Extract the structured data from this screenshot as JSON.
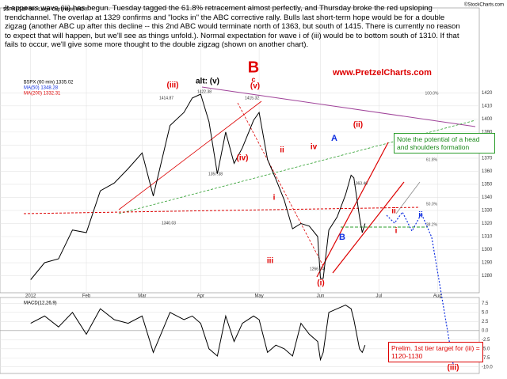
{
  "commentary": "It appears wave (iii) has begun.  Tuesday tagged the 61.8% retracement almost perfectly, and Thursday broke the red upsloping trendchannel.  The overlap at 1329 confirms and \"locks in\" the ABC corrective rally.  Bulls last short-term hope would be for a double zigzag (another ABC up after this decline -- this 2nd ABC would terminate north of 1363, but south of 1415.  There is currently no reason to expect that will happen, but we'll see as things unfold.).  Normal expectation for wave i of (iii) would be to bottom south of 1310.  If that fails to occur, we'll give some more thought to the double zigzag (shown on another chart).",
  "header": {
    "symbol": "$SPX (S&P 500 Large Cap Index) INDX",
    "source": "©StockCharts.com",
    "website": "www.PretzelCharts.com",
    "legend": [
      "$SPX (60 min) 1335.02",
      "MA(50) 1348.28",
      "MA(200) 1332.31"
    ]
  },
  "callouts": {
    "head_shoulders": "Note the potential of a head and shoulders formation",
    "target": "Prelim. 1st tier target for (iii) = 1120-1130"
  },
  "chart_data": [
    {
      "type": "line",
      "name": "$SPX (60 min)",
      "color": "#000000",
      "x": [
        0,
        5,
        10,
        15,
        20,
        25,
        30,
        35,
        40,
        44,
        50,
        55,
        58,
        61,
        64,
        67,
        70,
        73,
        76,
        80,
        82,
        85,
        88,
        91,
        94,
        97,
        100,
        103,
        104,
        105,
        107,
        110,
        113,
        115,
        116,
        118,
        119,
        120
      ],
      "values": [
        1277,
        1290,
        1293,
        1315,
        1313,
        1345,
        1351,
        1362,
        1374,
        1341,
        1395,
        1405,
        1416,
        1419,
        1398,
        1358,
        1390,
        1366,
        1378,
        1399,
        1405,
        1369,
        1354,
        1338,
        1316,
        1320,
        1318,
        1310,
        1278,
        1278,
        1315,
        1325,
        1342,
        1357,
        1355,
        1325,
        1313,
        1320
      ],
      "xlim": [
        -11,
        161
      ],
      "xticks": [
        {
          "value": 0,
          "label": "2012"
        },
        {
          "value": 20,
          "label": "Feb"
        },
        {
          "value": 40,
          "label": "Mar"
        },
        {
          "value": 61,
          "label": "Apr"
        },
        {
          "value": 82,
          "label": "May"
        },
        {
          "value": 104,
          "label": "Jun"
        },
        {
          "value": 125,
          "label": "Jul"
        },
        {
          "value": 146,
          "label": "Aug"
        }
      ],
      "ylim": [
        1267,
        1485
      ],
      "yticks": [
        1280,
        1290,
        1300,
        1310,
        1320,
        1330,
        1340,
        1350,
        1360,
        1370,
        1380,
        1390,
        1400,
        1410,
        1420
      ],
      "grid": true,
      "annotations": [
        {
          "text": "B",
          "color": "#e00000"
        },
        {
          "text": "c",
          "color": "#e00000"
        },
        {
          "text": "(v)",
          "color": "#e00000"
        },
        {
          "text": "alt: (v)",
          "color": "#000000"
        },
        {
          "text": "(iii)",
          "color": "#e00000"
        },
        {
          "text": "(iv)",
          "color": "#e00000"
        },
        {
          "text": "ii",
          "color": "#e00000"
        },
        {
          "text": "i",
          "color": "#e00000"
        },
        {
          "text": "iv",
          "color": "#e00000"
        },
        {
          "text": "iii",
          "color": "#e00000"
        },
        {
          "text": "(i)",
          "color": "#e00000"
        },
        {
          "text": "A",
          "color": "#1030e0"
        },
        {
          "text": "B",
          "color": "#1030e0"
        },
        {
          "text": "(ii)",
          "color": "#e00000"
        },
        {
          "text": "ii",
          "color": "#e00000"
        },
        {
          "text": "i",
          "color": "#e00000"
        },
        {
          "text": "ii",
          "color": "#1030e0"
        },
        {
          "text": "(iii)",
          "color": "#e00000"
        },
        {
          "text": "1414.87",
          "color": "#333333"
        },
        {
          "text": "1422.38",
          "color": "#333333"
        },
        {
          "text": "1415.32",
          "color": "#333333"
        },
        {
          "text": "1340.03",
          "color": "#333333"
        },
        {
          "text": "1357.38",
          "color": "#333333"
        },
        {
          "text": "1266.74",
          "color": "#333333"
        },
        {
          "text": "1363.46",
          "color": "#333333"
        },
        {
          "text": "61.8%",
          "color": "#555555"
        },
        {
          "text": "50.0%",
          "color": "#555555"
        },
        {
          "text": "38.2%",
          "color": "#555555"
        },
        {
          "text": "100.0%",
          "color": "#555555"
        }
      ]
    },
    {
      "type": "line",
      "name": "MACD(12,26,9)",
      "color": "#000000",
      "x": [
        0,
        5,
        10,
        15,
        20,
        25,
        30,
        35,
        40,
        44,
        50,
        55,
        58,
        61,
        64,
        67,
        70,
        73,
        76,
        80,
        82,
        85,
        88,
        91,
        94,
        97,
        100,
        103,
        104,
        105,
        107,
        110,
        113,
        115,
        116,
        118,
        119,
        120
      ],
      "values": [
        2,
        4,
        1,
        5,
        -1,
        6,
        3,
        2,
        4,
        -6,
        5,
        3,
        4,
        2,
        -5,
        -7,
        4,
        -3,
        2,
        4,
        3,
        -6,
        -4,
        -5,
        -7,
        2,
        -1,
        -3,
        -8,
        -6,
        5,
        6,
        7,
        6,
        3,
        -5,
        -6,
        -4
      ],
      "xlim": [
        -11,
        161
      ],
      "ylim": [
        -11.8,
        9.1
      ],
      "yticks": [
        {
          "value": 7.5,
          "label": "7.5"
        },
        {
          "value": 5,
          "label": "5.0"
        },
        {
          "value": 2.5,
          "label": "2.5"
        },
        {
          "value": 0,
          "label": "0.0"
        },
        {
          "value": -2.5,
          "label": "-2.5"
        },
        {
          "value": -5,
          "label": "-5.0"
        },
        {
          "value": -7.5,
          "label": "-7.5"
        },
        {
          "value": -10,
          "label": "-10.0"
        }
      ],
      "grid": true
    }
  ]
}
